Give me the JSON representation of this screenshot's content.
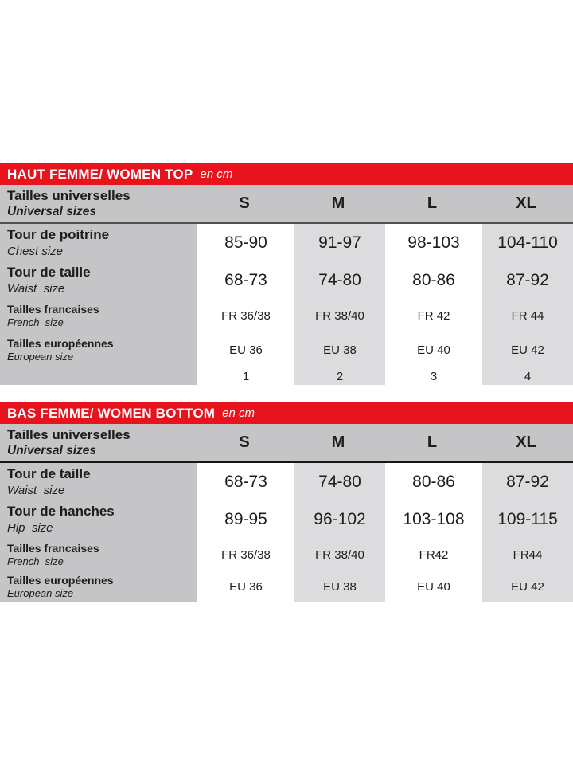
{
  "colors": {
    "red": "#e8131d",
    "header_gray": "#c5c5c7",
    "cell_gray": "#dcdcde",
    "text": "#1d1d1b"
  },
  "tables": [
    {
      "id": "women-top",
      "title": "HAUT FEMME/ WOMEN TOP",
      "unit": "en cm",
      "header": {
        "label_fr": "Tailles universelles",
        "label_en": "Universal sizes",
        "sizes": [
          "S",
          "M",
          "L",
          "XL"
        ]
      },
      "rows": [
        {
          "label_fr": "Tour de poitrine",
          "label_en": "Chest size",
          "values": [
            "85-90",
            "91-97",
            "98-103",
            "104-110"
          ]
        },
        {
          "label_fr": "Tour de taille",
          "label_en": "Waist  size",
          "values": [
            "68-73",
            "74-80",
            "80-86",
            "87-92"
          ]
        },
        {
          "label_fr": "Tailles francaises",
          "label_en": "French  size",
          "values": [
            "FR 36/38",
            "FR 38/40",
            "FR 42",
            "FR 44"
          ]
        },
        {
          "label_fr": "Tailles européennes",
          "label_en": "European size",
          "values": [
            "EU 36",
            "EU 38",
            "EU 40",
            "EU 42"
          ]
        },
        {
          "label_fr": "",
          "label_en": "",
          "values": [
            "1",
            "2",
            "3",
            "4"
          ]
        }
      ]
    },
    {
      "id": "women-bottom",
      "title": "BAS FEMME/ WOMEN BOTTOM",
      "unit": "en cm",
      "header": {
        "label_fr": "Tailles universelles",
        "label_en": "Universal sizes",
        "sizes": [
          "S",
          "M",
          "L",
          "XL"
        ]
      },
      "rows": [
        {
          "label_fr": "Tour de taille",
          "label_en": "Waist  size",
          "values": [
            "68-73",
            "74-80",
            "80-86",
            "87-92"
          ]
        },
        {
          "label_fr": "Tour de hanches",
          "label_en": "Hip  size",
          "values": [
            "89-95",
            "96-102",
            "103-108",
            "109-115"
          ]
        },
        {
          "label_fr": "Tailles francaises",
          "label_en": "French  size",
          "values": [
            "FR 36/38",
            "FR 38/40",
            "FR42",
            "FR44"
          ]
        },
        {
          "label_fr": "Tailles européennes",
          "label_en": "European size",
          "values": [
            "EU 36",
            "EU 38",
            "EU 40",
            "EU 42"
          ]
        }
      ]
    }
  ]
}
